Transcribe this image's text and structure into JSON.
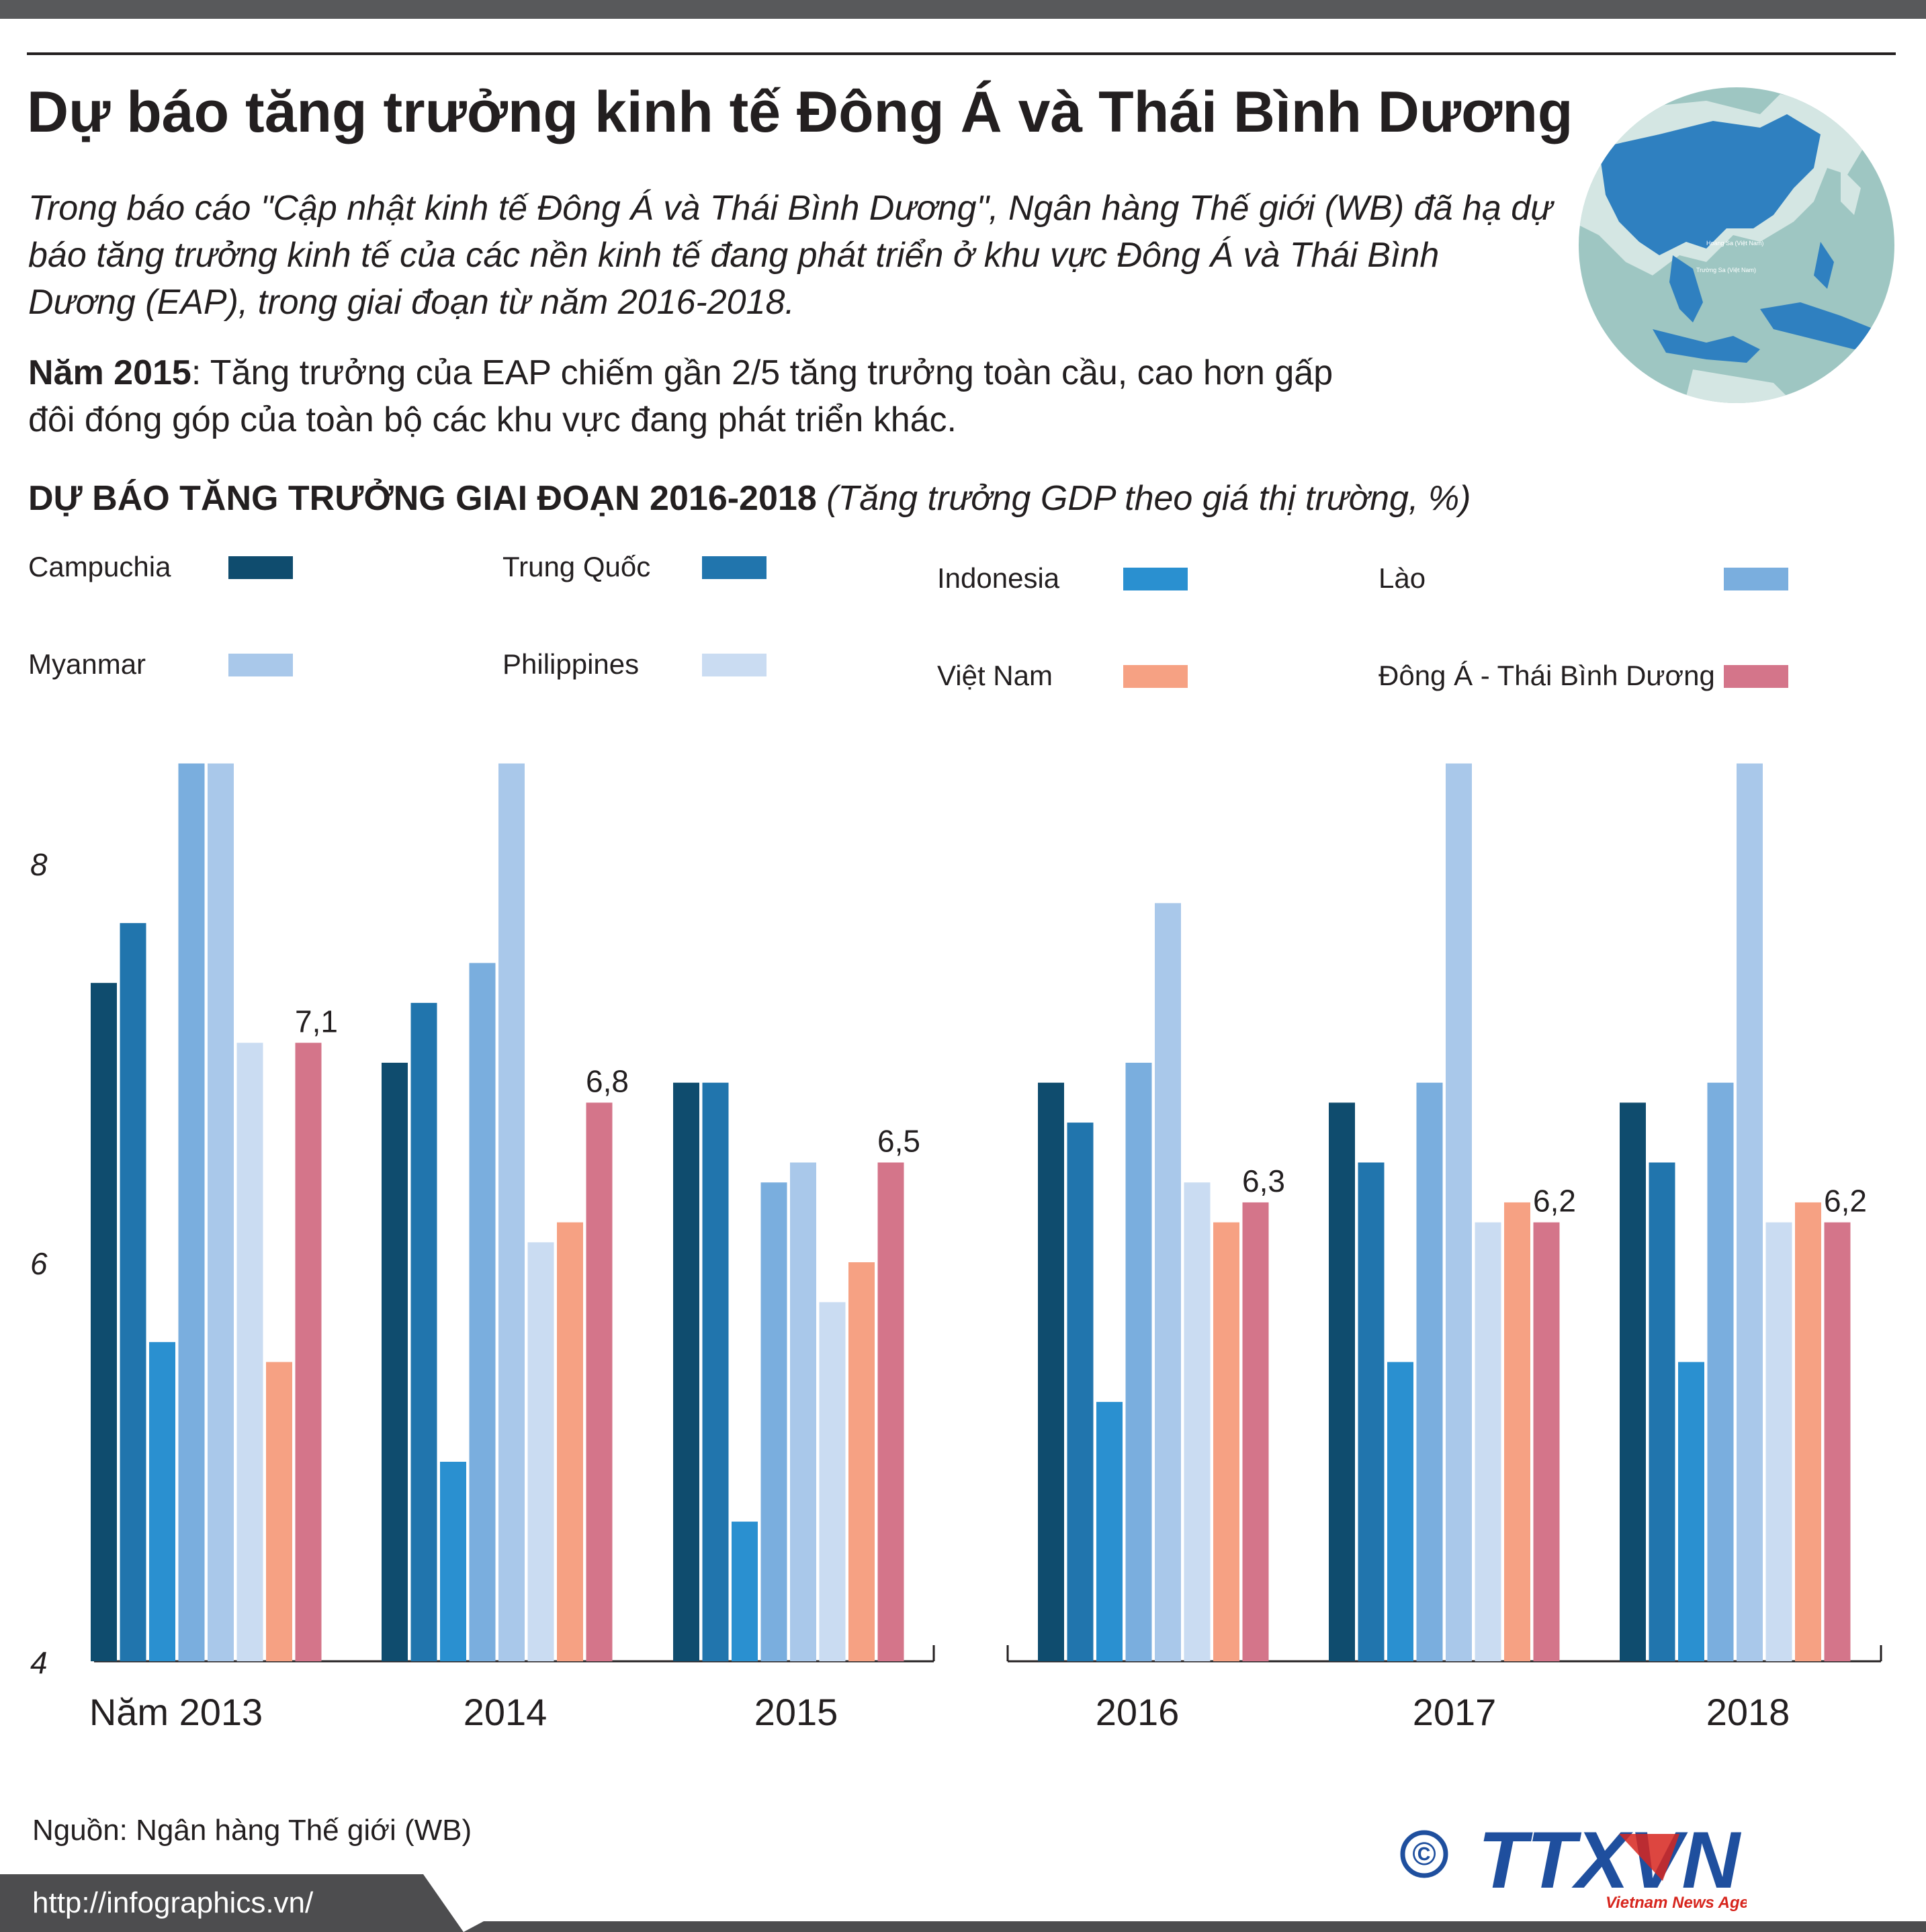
{
  "header": {
    "title": "Dự báo tăng trưởng kinh tế Đông Á và Thái Bình Dương",
    "intro": "Trong báo cáo \"Cập nhật kinh tế Đông Á và Thái Bình Dương\", Ngân hàng Thế giới (WB) đã hạ dự báo tăng trưởng kinh tế của các nền kinh tế đang phát triển ở khu vực Đông Á và Thái Bình Dương (EAP), trong giai đoạn từ năm 2016-2018.",
    "note_bold": "Năm 2015",
    "note_text": ": Tăng trưởng của EAP chiếm gần 2/5 tăng trưởng toàn cầu, cao hơn gấp đôi đóng góp của toàn bộ các khu vực đang phát triển khác."
  },
  "chart_data": {
    "type": "bar",
    "title": "DỰ BÁO TĂNG TRƯỞNG GIAI ĐOẠN 2016-2018",
    "unit": "(Tăng trưởng GDP theo giá thị trường, %)",
    "categories": [
      "Năm 2013",
      "2014",
      "2015",
      "2016",
      "2017",
      "2018"
    ],
    "yticks": [
      "4",
      "6",
      "8"
    ],
    "ylim": [
      4,
      8.45
    ],
    "series": [
      {
        "name": "Campuchia",
        "color": "#0f4c6e",
        "values": [
          7.4,
          7.0,
          6.9,
          6.9,
          6.8,
          6.8
        ]
      },
      {
        "name": "Trung Quốc",
        "color": "#2175ad",
        "values": [
          7.7,
          7.3,
          6.9,
          6.7,
          6.5,
          6.5
        ]
      },
      {
        "name": "Indonesia",
        "color": "#2a90d0",
        "values": [
          5.6,
          5.0,
          4.7,
          5.3,
          5.5,
          5.5
        ]
      },
      {
        "name": "Lào",
        "color": "#7aaede",
        "values": [
          8.5,
          7.5,
          6.4,
          7.0,
          6.9,
          6.9
        ]
      },
      {
        "name": "Myanmar",
        "color": "#a9c8ea",
        "values": [
          8.5,
          8.5,
          6.5,
          7.8,
          8.5,
          8.5
        ]
      },
      {
        "name": "Philippines",
        "color": "#cadcf2",
        "values": [
          7.1,
          6.1,
          5.8,
          6.4,
          6.2,
          6.2
        ]
      },
      {
        "name": "Việt Nam",
        "color": "#f6a183",
        "values": [
          5.5,
          6.2,
          6.0,
          6.2,
          6.3,
          6.3
        ]
      },
      {
        "name": "Đông Á - Thái Bình Dương",
        "color": "#d4758a",
        "values": [
          7.1,
          6.8,
          6.5,
          6.3,
          6.2,
          6.2
        ]
      }
    ],
    "value_labels": [
      "7,1",
      "6,8",
      "6,5",
      "6,3",
      "6,2",
      "6,2"
    ]
  },
  "source": "Nguồn: Ngân hàng Thế giới (WB)",
  "footer": {
    "url": "http://infographics.vn/",
    "logo_text": "TTXVN",
    "logo_sub": "Vietnam News Agency",
    "copyright": "©"
  },
  "colors": {
    "topbar": "#58595b",
    "footer": "#4d4d4f",
    "globe_ocean": "#9ec6c2",
    "globe_land": "#d4e6e3",
    "globe_region": "#2f80c0",
    "logo_blue": "#1f4f9e",
    "logo_red": "#d7261e"
  },
  "globe": {
    "label1": "Hoàng Sa (Việt Nam)",
    "label2": "Trường Sa (Việt Nam)"
  }
}
